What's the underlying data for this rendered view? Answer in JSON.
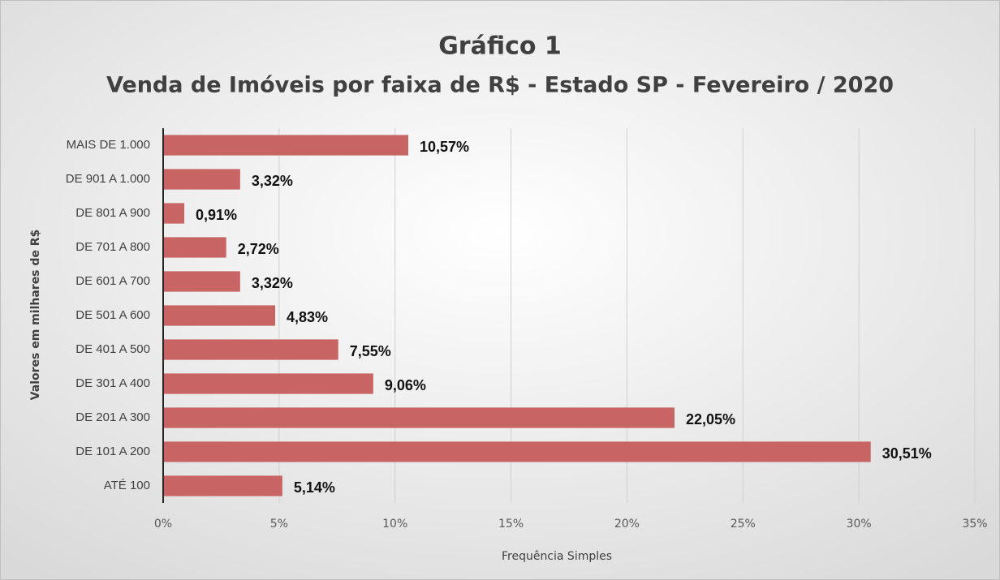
{
  "chart_data": {
    "type": "bar",
    "orientation": "horizontal",
    "title": "Gráfico 1",
    "subtitle": "Venda de Imóveis por faixa de R$ - Estado SP - Fevereiro / 2020",
    "ylabel": "Valores em milhares de R$",
    "xlabel": "Frequência Simples",
    "categories": [
      "MAIS DE 1.000",
      "DE 901 A 1.000",
      "DE 801 A 900",
      "DE 701 A 800",
      "DE 601 A 700",
      "DE 501 A 600",
      "DE 401 A 500",
      "DE 301 A 400",
      "DE 201 A 300",
      "DE 101 A 200",
      "ATÉ 100"
    ],
    "values": [
      10.57,
      3.32,
      0.91,
      2.72,
      3.32,
      4.83,
      7.55,
      9.06,
      22.05,
      30.51,
      5.14
    ],
    "value_labels": [
      "10,57%",
      "3,32%",
      "0,91%",
      "2,72%",
      "3,32%",
      "4,83%",
      "7,55%",
      "9,06%",
      "22,05%",
      "30,51%",
      "5,14%"
    ],
    "color": "#c86464",
    "xlim": [
      0,
      35
    ],
    "xticks": [
      {
        "value": 0,
        "label": "0%"
      },
      {
        "value": 5,
        "label": "5%"
      },
      {
        "value": 10,
        "label": "10%"
      },
      {
        "value": 15,
        "label": "15%"
      },
      {
        "value": 20,
        "label": "20%"
      },
      {
        "value": 25,
        "label": "25%"
      },
      {
        "value": 30,
        "label": "30%"
      },
      {
        "value": 35,
        "label": "35%"
      }
    ],
    "grid": true
  }
}
